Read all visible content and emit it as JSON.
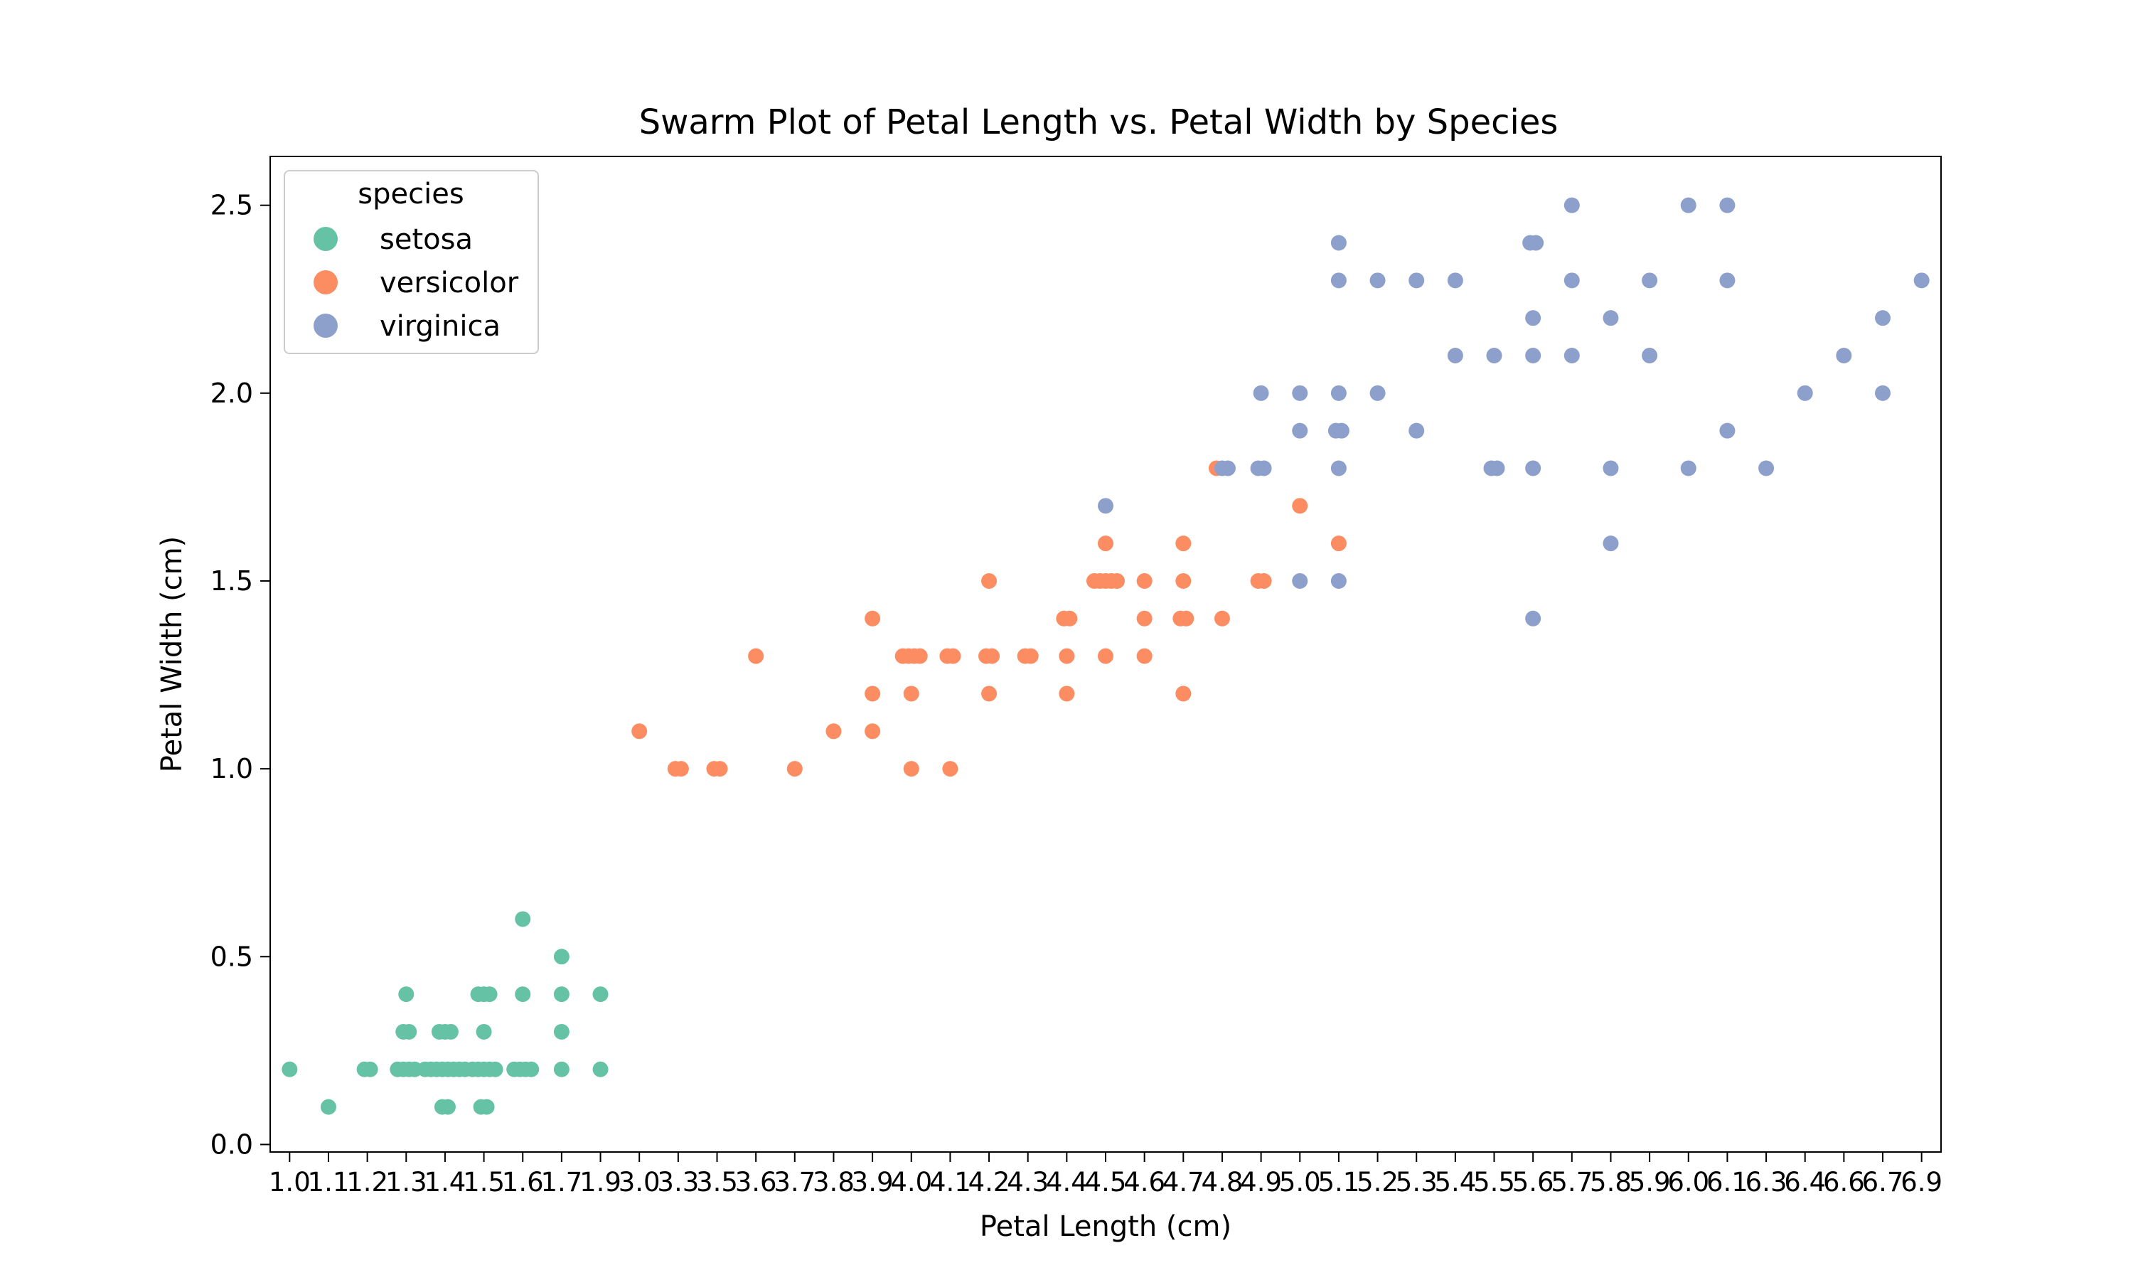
{
  "chart_data": {
    "type": "scatter",
    "subtype": "swarm",
    "title": "Swarm Plot of Petal Length vs. Petal Width by Species",
    "xlabel": "Petal Length (cm)",
    "ylabel": "Petal Width (cm)",
    "x_categories": [
      "1.0",
      "1.1",
      "1.2",
      "1.3",
      "1.4",
      "1.5",
      "1.6",
      "1.7",
      "1.9",
      "3.0",
      "3.3",
      "3.5",
      "3.6",
      "3.7",
      "3.8",
      "3.9",
      "4.0",
      "4.1",
      "4.2",
      "4.3",
      "4.4",
      "4.5",
      "4.6",
      "4.7",
      "4.8",
      "4.9",
      "5.0",
      "5.1",
      "5.2",
      "5.3",
      "5.4",
      "5.5",
      "5.6",
      "5.7",
      "5.8",
      "5.9",
      "6.0",
      "6.1",
      "6.3",
      "6.4",
      "6.6",
      "6.7",
      "6.9"
    ],
    "yticks": [
      "0.0",
      "0.5",
      "1.0",
      "1.5",
      "2.0",
      "2.5"
    ],
    "ylim": [
      -0.02,
      2.63
    ],
    "grid": false,
    "legend": {
      "title": "species",
      "placement": "upper-left"
    },
    "series": [
      {
        "name": "setosa",
        "color": "#66c2a5",
        "points": [
          [
            "1.0",
            0.2
          ],
          [
            "1.1",
            0.1
          ],
          [
            "1.2",
            0.2
          ],
          [
            "1.2",
            0.2
          ],
          [
            "1.3",
            0.2
          ],
          [
            "1.3",
            0.2
          ],
          [
            "1.3",
            0.2
          ],
          [
            "1.3",
            0.2
          ],
          [
            "1.3",
            0.3
          ],
          [
            "1.3",
            0.3
          ],
          [
            "1.3",
            0.4
          ],
          [
            "1.4",
            0.2
          ],
          [
            "1.4",
            0.2
          ],
          [
            "1.4",
            0.2
          ],
          [
            "1.4",
            0.2
          ],
          [
            "1.4",
            0.2
          ],
          [
            "1.4",
            0.2
          ],
          [
            "1.4",
            0.2
          ],
          [
            "1.4",
            0.2
          ],
          [
            "1.4",
            0.3
          ],
          [
            "1.4",
            0.3
          ],
          [
            "1.4",
            0.3
          ],
          [
            "1.4",
            0.1
          ],
          [
            "1.4",
            0.1
          ],
          [
            "1.5",
            0.2
          ],
          [
            "1.5",
            0.2
          ],
          [
            "1.5",
            0.2
          ],
          [
            "1.5",
            0.2
          ],
          [
            "1.5",
            0.2
          ],
          [
            "1.5",
            0.4
          ],
          [
            "1.5",
            0.4
          ],
          [
            "1.5",
            0.4
          ],
          [
            "1.5",
            0.3
          ],
          [
            "1.5",
            0.1
          ],
          [
            "1.5",
            0.1
          ],
          [
            "1.6",
            0.2
          ],
          [
            "1.6",
            0.2
          ],
          [
            "1.6",
            0.2
          ],
          [
            "1.6",
            0.2
          ],
          [
            "1.6",
            0.4
          ],
          [
            "1.6",
            0.6
          ],
          [
            "1.7",
            0.5
          ],
          [
            "1.7",
            0.4
          ],
          [
            "1.7",
            0.3
          ],
          [
            "1.7",
            0.2
          ],
          [
            "1.9",
            0.4
          ],
          [
            "1.9",
            0.2
          ]
        ]
      },
      {
        "name": "versicolor",
        "color": "#fc8d62",
        "points": [
          [
            "3.0",
            1.1
          ],
          [
            "3.3",
            1.0
          ],
          [
            "3.3",
            1.0
          ],
          [
            "3.5",
            1.0
          ],
          [
            "3.5",
            1.0
          ],
          [
            "3.6",
            1.3
          ],
          [
            "3.7",
            1.0
          ],
          [
            "3.8",
            1.1
          ],
          [
            "3.9",
            1.4
          ],
          [
            "3.9",
            1.2
          ],
          [
            "3.9",
            1.1
          ],
          [
            "4.0",
            1.3
          ],
          [
            "4.0",
            1.3
          ],
          [
            "4.0",
            1.3
          ],
          [
            "4.0",
            1.3
          ],
          [
            "4.0",
            1.2
          ],
          [
            "4.0",
            1.0
          ],
          [
            "4.1",
            1.3
          ],
          [
            "4.1",
            1.3
          ],
          [
            "4.1",
            1.0
          ],
          [
            "4.2",
            1.5
          ],
          [
            "4.2",
            1.3
          ],
          [
            "4.2",
            1.3
          ],
          [
            "4.2",
            1.2
          ],
          [
            "4.3",
            1.3
          ],
          [
            "4.3",
            1.3
          ],
          [
            "4.4",
            1.4
          ],
          [
            "4.4",
            1.4
          ],
          [
            "4.4",
            1.3
          ],
          [
            "4.4",
            1.2
          ],
          [
            "4.5",
            1.6
          ],
          [
            "4.5",
            1.5
          ],
          [
            "4.5",
            1.5
          ],
          [
            "4.5",
            1.5
          ],
          [
            "4.5",
            1.5
          ],
          [
            "4.5",
            1.3
          ],
          [
            "4.5",
            1.5
          ],
          [
            "4.6",
            1.5
          ],
          [
            "4.6",
            1.4
          ],
          [
            "4.6",
            1.3
          ],
          [
            "4.7",
            1.6
          ],
          [
            "4.7",
            1.5
          ],
          [
            "4.7",
            1.4
          ],
          [
            "4.7",
            1.4
          ],
          [
            "4.7",
            1.2
          ],
          [
            "4.8",
            1.8
          ],
          [
            "4.8",
            1.4
          ],
          [
            "4.9",
            1.5
          ],
          [
            "4.9",
            1.5
          ],
          [
            "5.0",
            1.7
          ],
          [
            "5.1",
            1.6
          ]
        ]
      },
      {
        "name": "virginica",
        "color": "#8da0cb",
        "points": [
          [
            "4.5",
            1.7
          ],
          [
            "4.8",
            1.8
          ],
          [
            "4.8",
            1.8
          ],
          [
            "4.9",
            2.0
          ],
          [
            "4.9",
            1.8
          ],
          [
            "4.9",
            1.8
          ],
          [
            "5.0",
            2.0
          ],
          [
            "5.0",
            1.9
          ],
          [
            "5.0",
            1.5
          ],
          [
            "5.1",
            2.4
          ],
          [
            "5.1",
            2.3
          ],
          [
            "5.1",
            2.0
          ],
          [
            "5.1",
            1.9
          ],
          [
            "5.1",
            1.9
          ],
          [
            "5.1",
            1.8
          ],
          [
            "5.1",
            1.5
          ],
          [
            "5.2",
            2.3
          ],
          [
            "5.2",
            2.0
          ],
          [
            "5.3",
            2.3
          ],
          [
            "5.3",
            1.9
          ],
          [
            "5.4",
            2.3
          ],
          [
            "5.4",
            2.1
          ],
          [
            "5.5",
            2.1
          ],
          [
            "5.5",
            1.8
          ],
          [
            "5.5",
            1.8
          ],
          [
            "5.6",
            2.4
          ],
          [
            "5.6",
            2.4
          ],
          [
            "5.6",
            2.2
          ],
          [
            "5.6",
            2.1
          ],
          [
            "5.6",
            1.8
          ],
          [
            "5.6",
            1.4
          ],
          [
            "5.7",
            2.5
          ],
          [
            "5.7",
            2.3
          ],
          [
            "5.7",
            2.1
          ],
          [
            "5.8",
            2.2
          ],
          [
            "5.8",
            1.8
          ],
          [
            "5.8",
            1.6
          ],
          [
            "5.9",
            2.3
          ],
          [
            "5.9",
            2.1
          ],
          [
            "6.0",
            2.5
          ],
          [
            "6.0",
            1.8
          ],
          [
            "6.1",
            2.5
          ],
          [
            "6.1",
            2.3
          ],
          [
            "6.1",
            1.9
          ],
          [
            "6.3",
            1.8
          ],
          [
            "6.4",
            2.0
          ],
          [
            "6.6",
            2.1
          ],
          [
            "6.7",
            2.2
          ],
          [
            "6.7",
            2.0
          ],
          [
            "6.9",
            2.3
          ]
        ]
      }
    ]
  }
}
